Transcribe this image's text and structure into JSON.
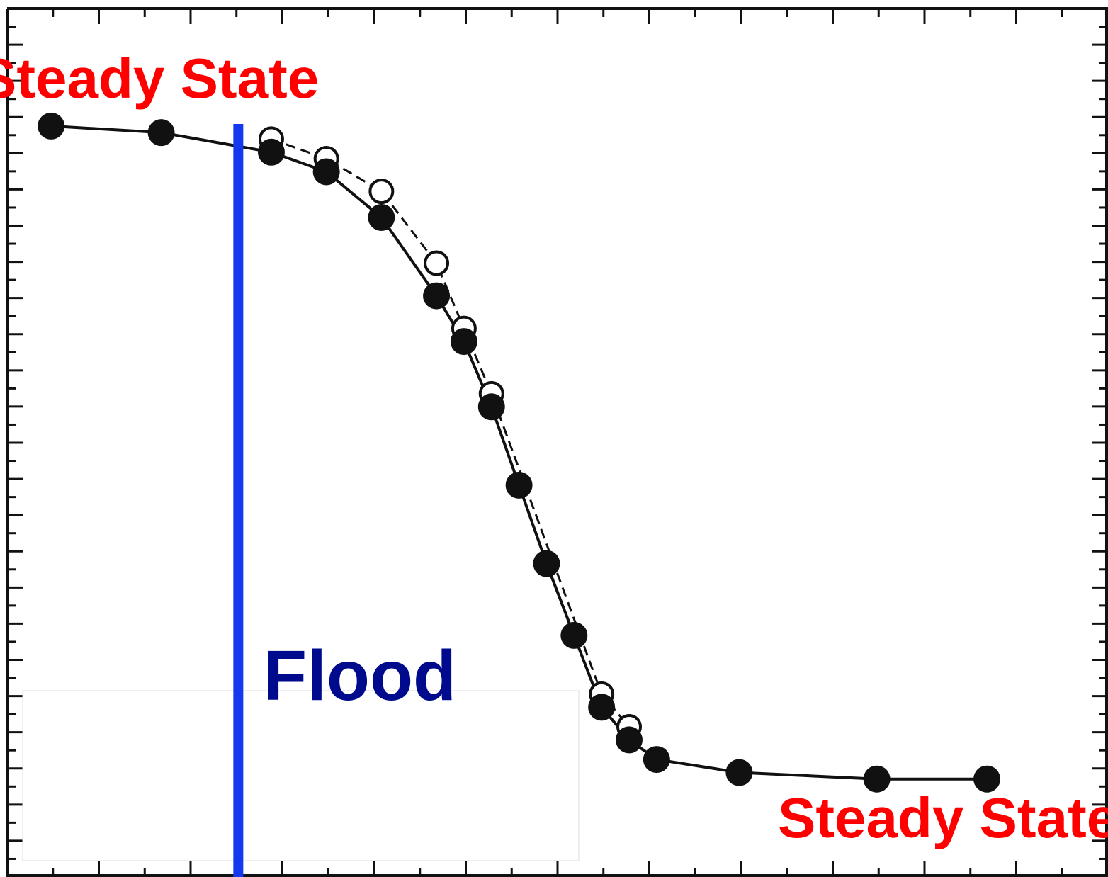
{
  "chart_data": {
    "type": "scatter",
    "title": "",
    "xlabel": "",
    "ylabel": "",
    "axes_labels_visible": false,
    "x_ticks": {
      "major": 12,
      "minor_per_major": 2
    },
    "y_ticks": {
      "major": 10,
      "minor_per_major": 2
    },
    "series": [
      {
        "style": "filled-circles-solid-line",
        "points": [
          [
            0.8,
            1.0
          ],
          [
            2.8,
            0.99
          ],
          [
            4.8,
            0.96
          ],
          [
            5.8,
            0.93
          ],
          [
            6.8,
            0.86
          ],
          [
            7.8,
            0.74
          ],
          [
            8.3,
            0.67
          ],
          [
            8.8,
            0.57
          ],
          [
            9.3,
            0.45
          ],
          [
            9.8,
            0.33
          ],
          [
            10.3,
            0.22
          ],
          [
            10.8,
            0.11
          ],
          [
            11.3,
            0.06
          ],
          [
            11.8,
            0.03
          ],
          [
            13.3,
            0.01
          ],
          [
            15.8,
            0.0
          ],
          [
            17.8,
            0.0
          ]
        ]
      },
      {
        "style": "open-circles-dashed-line",
        "points": [
          [
            4.8,
            0.98
          ],
          [
            5.8,
            0.95
          ],
          [
            6.8,
            0.9
          ],
          [
            7.8,
            0.79
          ],
          [
            8.3,
            0.69
          ],
          [
            8.8,
            0.59
          ],
          [
            10.8,
            0.13
          ],
          [
            11.3,
            0.08
          ]
        ]
      }
    ],
    "xlim": [
      0,
      20
    ],
    "ylim": [
      -0.15,
      1.18
    ],
    "annotations": {
      "steady_state_left": "Steady State",
      "flood": "Flood",
      "steady_state_right": "Steady State",
      "flood_line_x": 4.2
    },
    "colors": {
      "annotation_red": "#ff0000",
      "flood_line": "#1438f0",
      "flood_text": "#000a8c",
      "marker": "#111111"
    }
  }
}
